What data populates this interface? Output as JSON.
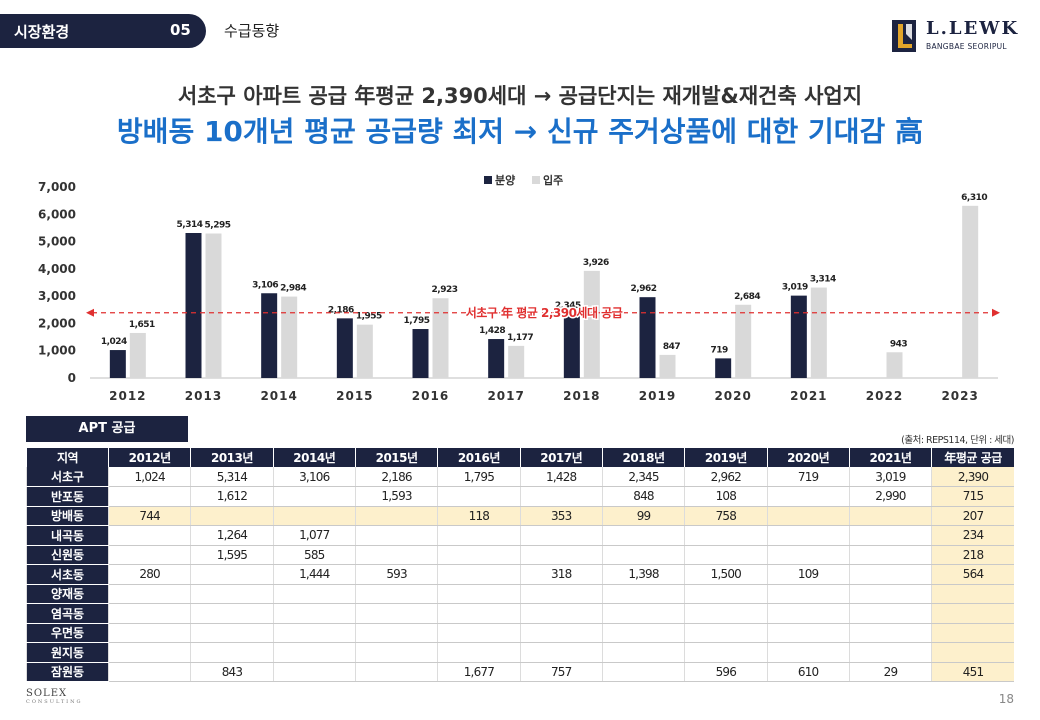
{
  "header": {
    "section": "시장환경",
    "number": "05",
    "subtitle": "수급동향"
  },
  "brand": {
    "name": "L.LEWK",
    "sub": "BANGBAE SEORIPUL"
  },
  "headline": {
    "line1": "서초구 아파트 공급 年평균 2,390세대 → 공급단지는 재개발&재건축 사업지",
    "line2": "방배동 10개년 평균 공급량 최저 → 신규 주거상품에 대한 기대감 高"
  },
  "colors": {
    "navy": "#1c2340",
    "gray": "#d9d9d9",
    "accent": "#1a6fc9",
    "avg_line": "#e03030",
    "highlight": "#fdf0cc"
  },
  "chart_data": {
    "type": "bar",
    "categories": [
      "2012",
      "2013",
      "2014",
      "2015",
      "2016",
      "2017",
      "2018",
      "2019",
      "2020",
      "2021",
      "2022",
      "2023"
    ],
    "series": [
      {
        "name": "분양",
        "values": [
          1024,
          5314,
          3106,
          2186,
          1795,
          1428,
          2345,
          2962,
          719,
          3019,
          null,
          null
        ]
      },
      {
        "name": "입주",
        "values": [
          1651,
          5295,
          2984,
          1955,
          2923,
          1177,
          3926,
          847,
          2684,
          3314,
          943,
          6310
        ]
      }
    ],
    "value_labels": {
      "분양": [
        "1,024",
        "5,314",
        "3,106",
        "2,186",
        "1,795",
        "1,428",
        "2,345",
        "2,962",
        "719",
        "3,019",
        "",
        ""
      ],
      "입주": [
        "1,651",
        "5,295",
        "2,984",
        "1,955",
        "2,923",
        "1,177",
        "3,926",
        "847",
        "2,684",
        "3,314",
        "943",
        "6,310"
      ]
    },
    "ylim": [
      0,
      7000
    ],
    "yticks": [
      "0",
      "1,000",
      "2,000",
      "3,000",
      "4,000",
      "5,000",
      "6,000",
      "7,000"
    ],
    "ytick_values": [
      0,
      1000,
      2000,
      3000,
      4000,
      5000,
      6000,
      7000
    ],
    "average": 2390,
    "average_label": "서초구 年 평균 2,390세대 공급",
    "legend": "top-center",
    "title": "",
    "xlabel": "",
    "ylabel": ""
  },
  "table": {
    "tag": "APT 공급",
    "source": "(출처: REPS114, 단위 : 세대)",
    "headers": [
      "지역",
      "2012년",
      "2013년",
      "2014년",
      "2015년",
      "2016년",
      "2017년",
      "2018년",
      "2019년",
      "2020년",
      "2021년",
      "年평균 공급"
    ],
    "rows": [
      [
        "서초구",
        "1,024",
        "5,314",
        "3,106",
        "2,186",
        "1,795",
        "1,428",
        "2,345",
        "2,962",
        "719",
        "3,019",
        "2,390"
      ],
      [
        "반포동",
        "",
        "1,612",
        "",
        "1,593",
        "",
        "",
        "848",
        "108",
        "",
        "2,990",
        "715"
      ],
      [
        "방배동",
        "744",
        "",
        "",
        "",
        "118",
        "353",
        "99",
        "758",
        "",
        "",
        "207"
      ],
      [
        "내곡동",
        "",
        "1,264",
        "1,077",
        "",
        "",
        "",
        "",
        "",
        "",
        "",
        "234"
      ],
      [
        "신원동",
        "",
        "1,595",
        "585",
        "",
        "",
        "",
        "",
        "",
        "",
        "",
        "218"
      ],
      [
        "서초동",
        "280",
        "",
        "1,444",
        "593",
        "",
        "318",
        "1,398",
        "1,500",
        "109",
        "",
        "564"
      ],
      [
        "양재동",
        "",
        "",
        "",
        "",
        "",
        "",
        "",
        "",
        "",
        "",
        ""
      ],
      [
        "염곡동",
        "",
        "",
        "",
        "",
        "",
        "",
        "",
        "",
        "",
        "",
        ""
      ],
      [
        "우면동",
        "",
        "",
        "",
        "",
        "",
        "",
        "",
        "",
        "",
        "",
        ""
      ],
      [
        "원지동",
        "",
        "",
        "",
        "",
        "",
        "",
        "",
        "",
        "",
        "",
        ""
      ],
      [
        "잠원동",
        "",
        "843",
        "",
        "",
        "1,677",
        "757",
        "",
        "596",
        "610",
        "29",
        "451"
      ]
    ],
    "highlight_row": 2
  },
  "footer": {
    "logo": "SOLEX",
    "logo_sub": "CONSULTING",
    "page": "18"
  }
}
